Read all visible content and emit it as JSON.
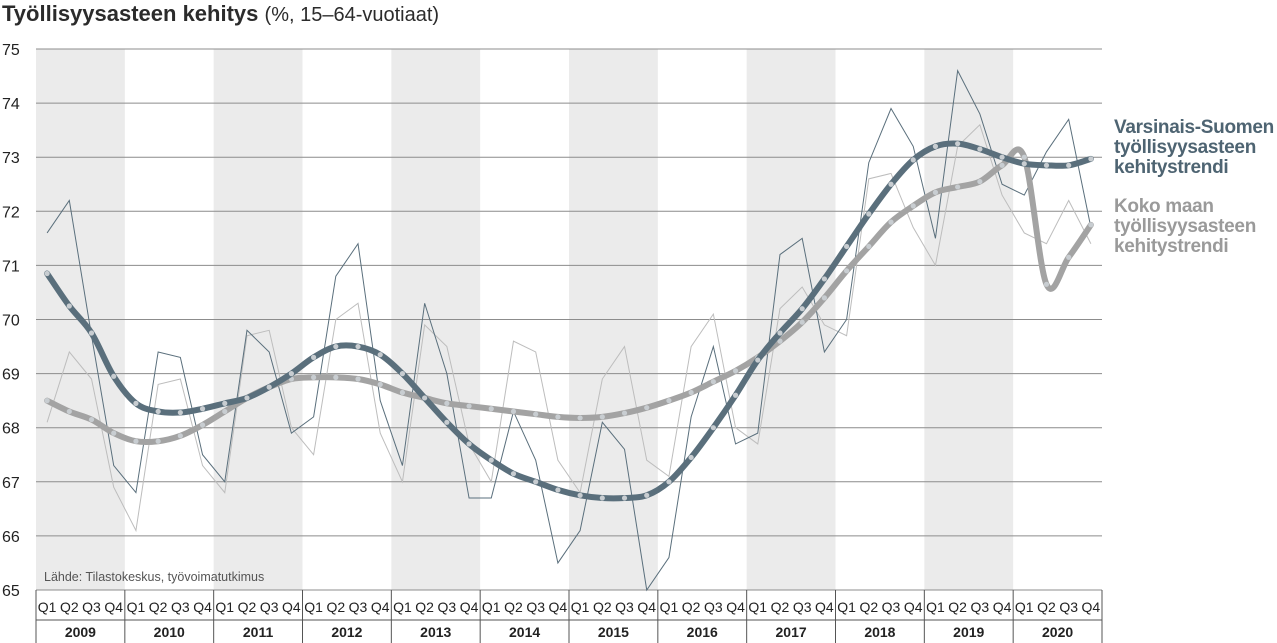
{
  "title": {
    "bold": "Työllisyysasteen kehitys",
    "light": "(%, 15–64-vuotiaat)"
  },
  "source_note": "Lähde: Tilastokeskus, työvoimatutkimus",
  "legend": {
    "regional": [
      "Varsinais-Suomen",
      "työllisyysasteen",
      "kehitystrendi"
    ],
    "national": [
      "Koko maan",
      "työllisyysasteen",
      "kehitystrendi"
    ]
  },
  "colors": {
    "regional": "#5a6f7c",
    "regional_legend": "#4e6472",
    "national": "#a3a3a3",
    "national_legend": "#9a9a9a",
    "band": "#ebebeb",
    "grid": "#8c8c8c",
    "marker": "#c8cdd1"
  },
  "chart_data": {
    "type": "line",
    "ylim": [
      65,
      75
    ],
    "yticks": [
      65,
      66,
      67,
      68,
      69,
      70,
      71,
      72,
      73,
      74,
      75
    ],
    "quarters": [
      "Q1",
      "Q2",
      "Q3",
      "Q4"
    ],
    "years": [
      "2009",
      "2010",
      "2011",
      "2012",
      "2013",
      "2014",
      "2015",
      "2016",
      "2017",
      "2018",
      "2019",
      "2020"
    ],
    "series": [
      {
        "key": "regional_trend",
        "name": "Varsinais-Suomen työllisyysasteen kehitystrendi",
        "style": "trend",
        "values": [
          70.85,
          70.25,
          69.75,
          68.95,
          68.45,
          68.3,
          68.28,
          68.35,
          68.45,
          68.55,
          68.75,
          69.0,
          69.3,
          69.5,
          69.5,
          69.35,
          69.0,
          68.55,
          68.1,
          67.7,
          67.4,
          67.15,
          67.0,
          66.85,
          66.75,
          66.7,
          66.7,
          66.75,
          67.0,
          67.45,
          68.0,
          68.6,
          69.25,
          69.75,
          70.2,
          70.75,
          71.35,
          71.95,
          72.5,
          72.95,
          73.2,
          73.25,
          73.15,
          73.0,
          72.88,
          72.85,
          72.85,
          72.97
        ]
      },
      {
        "key": "national_trend",
        "name": "Koko maan työllisyysasteen kehitystrendi",
        "style": "trend",
        "values": [
          68.5,
          68.3,
          68.15,
          67.9,
          67.75,
          67.75,
          67.85,
          68.05,
          68.3,
          68.55,
          68.75,
          68.9,
          68.93,
          68.93,
          68.9,
          68.8,
          68.65,
          68.55,
          68.45,
          68.4,
          68.35,
          68.3,
          68.25,
          68.2,
          68.18,
          68.2,
          68.27,
          68.37,
          68.5,
          68.65,
          68.85,
          69.05,
          69.3,
          69.6,
          69.95,
          70.4,
          70.9,
          71.35,
          71.8,
          72.1,
          72.35,
          72.45,
          72.55,
          72.85,
          73.0,
          70.65,
          71.15,
          71.75
        ]
      },
      {
        "key": "regional_raw",
        "name": "Varsinais-Suomi",
        "style": "raw",
        "values": [
          71.6,
          72.2,
          69.7,
          67.3,
          66.8,
          69.4,
          69.3,
          67.5,
          67.0,
          69.8,
          69.4,
          67.9,
          68.2,
          70.8,
          71.4,
          68.5,
          67.3,
          70.3,
          69.0,
          66.7,
          66.7,
          68.3,
          67.4,
          65.5,
          66.1,
          68.1,
          67.6,
          65.0,
          65.6,
          68.2,
          69.5,
          67.7,
          67.9,
          71.2,
          71.5,
          69.4,
          70.0,
          72.9,
          73.9,
          73.2,
          71.5,
          74.6,
          73.8,
          72.5,
          72.3,
          73.1,
          73.7,
          71.7
        ]
      },
      {
        "key": "national_raw",
        "name": "Koko maa",
        "style": "raw",
        "values": [
          68.1,
          69.4,
          68.9,
          66.9,
          66.1,
          68.8,
          68.9,
          67.3,
          66.8,
          69.7,
          69.8,
          68.0,
          67.5,
          70.0,
          70.3,
          67.9,
          67.0,
          69.9,
          69.5,
          67.7,
          67.0,
          69.6,
          69.4,
          67.4,
          66.8,
          68.9,
          69.5,
          67.4,
          67.1,
          69.5,
          70.1,
          68.0,
          67.7,
          70.2,
          70.6,
          69.9,
          69.7,
          72.6,
          72.7,
          71.7,
          71.0,
          73.2,
          73.6,
          72.3,
          71.6,
          71.4,
          72.2,
          71.4
        ]
      }
    ]
  }
}
